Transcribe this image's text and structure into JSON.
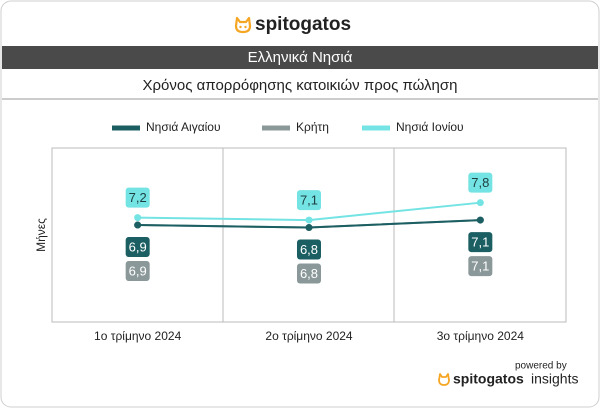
{
  "header": {
    "logo": "spitogatos"
  },
  "chart_data": {
    "type": "line",
    "title": "Ελληνικά Νησιά",
    "subtitle": "Χρόνος απορρόφησης κατοικιών προς πώληση",
    "y_label": "Μήνες",
    "categories": [
      "1ο τρίμηνο 2024",
      "2ο τρίμηνο 2024",
      "3ο τρίμηνο 2024"
    ],
    "series": [
      {
        "name": "Νησιά Αιγαίου",
        "color": "#1b5f63",
        "values": [
          6.9,
          6.8,
          7.1
        ],
        "value_labels": [
          "6,9",
          "6,8",
          "7,1"
        ]
      },
      {
        "name": "Κρήτη",
        "color": "#8b9899",
        "values": [
          6.9,
          6.8,
          7.1
        ],
        "value_labels": [
          "6,9",
          "6,8",
          "7,1"
        ]
      },
      {
        "name": "Νησιά Ιονίου",
        "color": "#74e3e3",
        "values": [
          7.2,
          7.1,
          7.8
        ],
        "value_labels": [
          "7,2",
          "7,1",
          "7,8"
        ]
      }
    ],
    "ylim": [
      3,
      10
    ]
  },
  "footer": {
    "powered_by": "powered by",
    "brand": "spitogatos",
    "suffix": "insights"
  }
}
